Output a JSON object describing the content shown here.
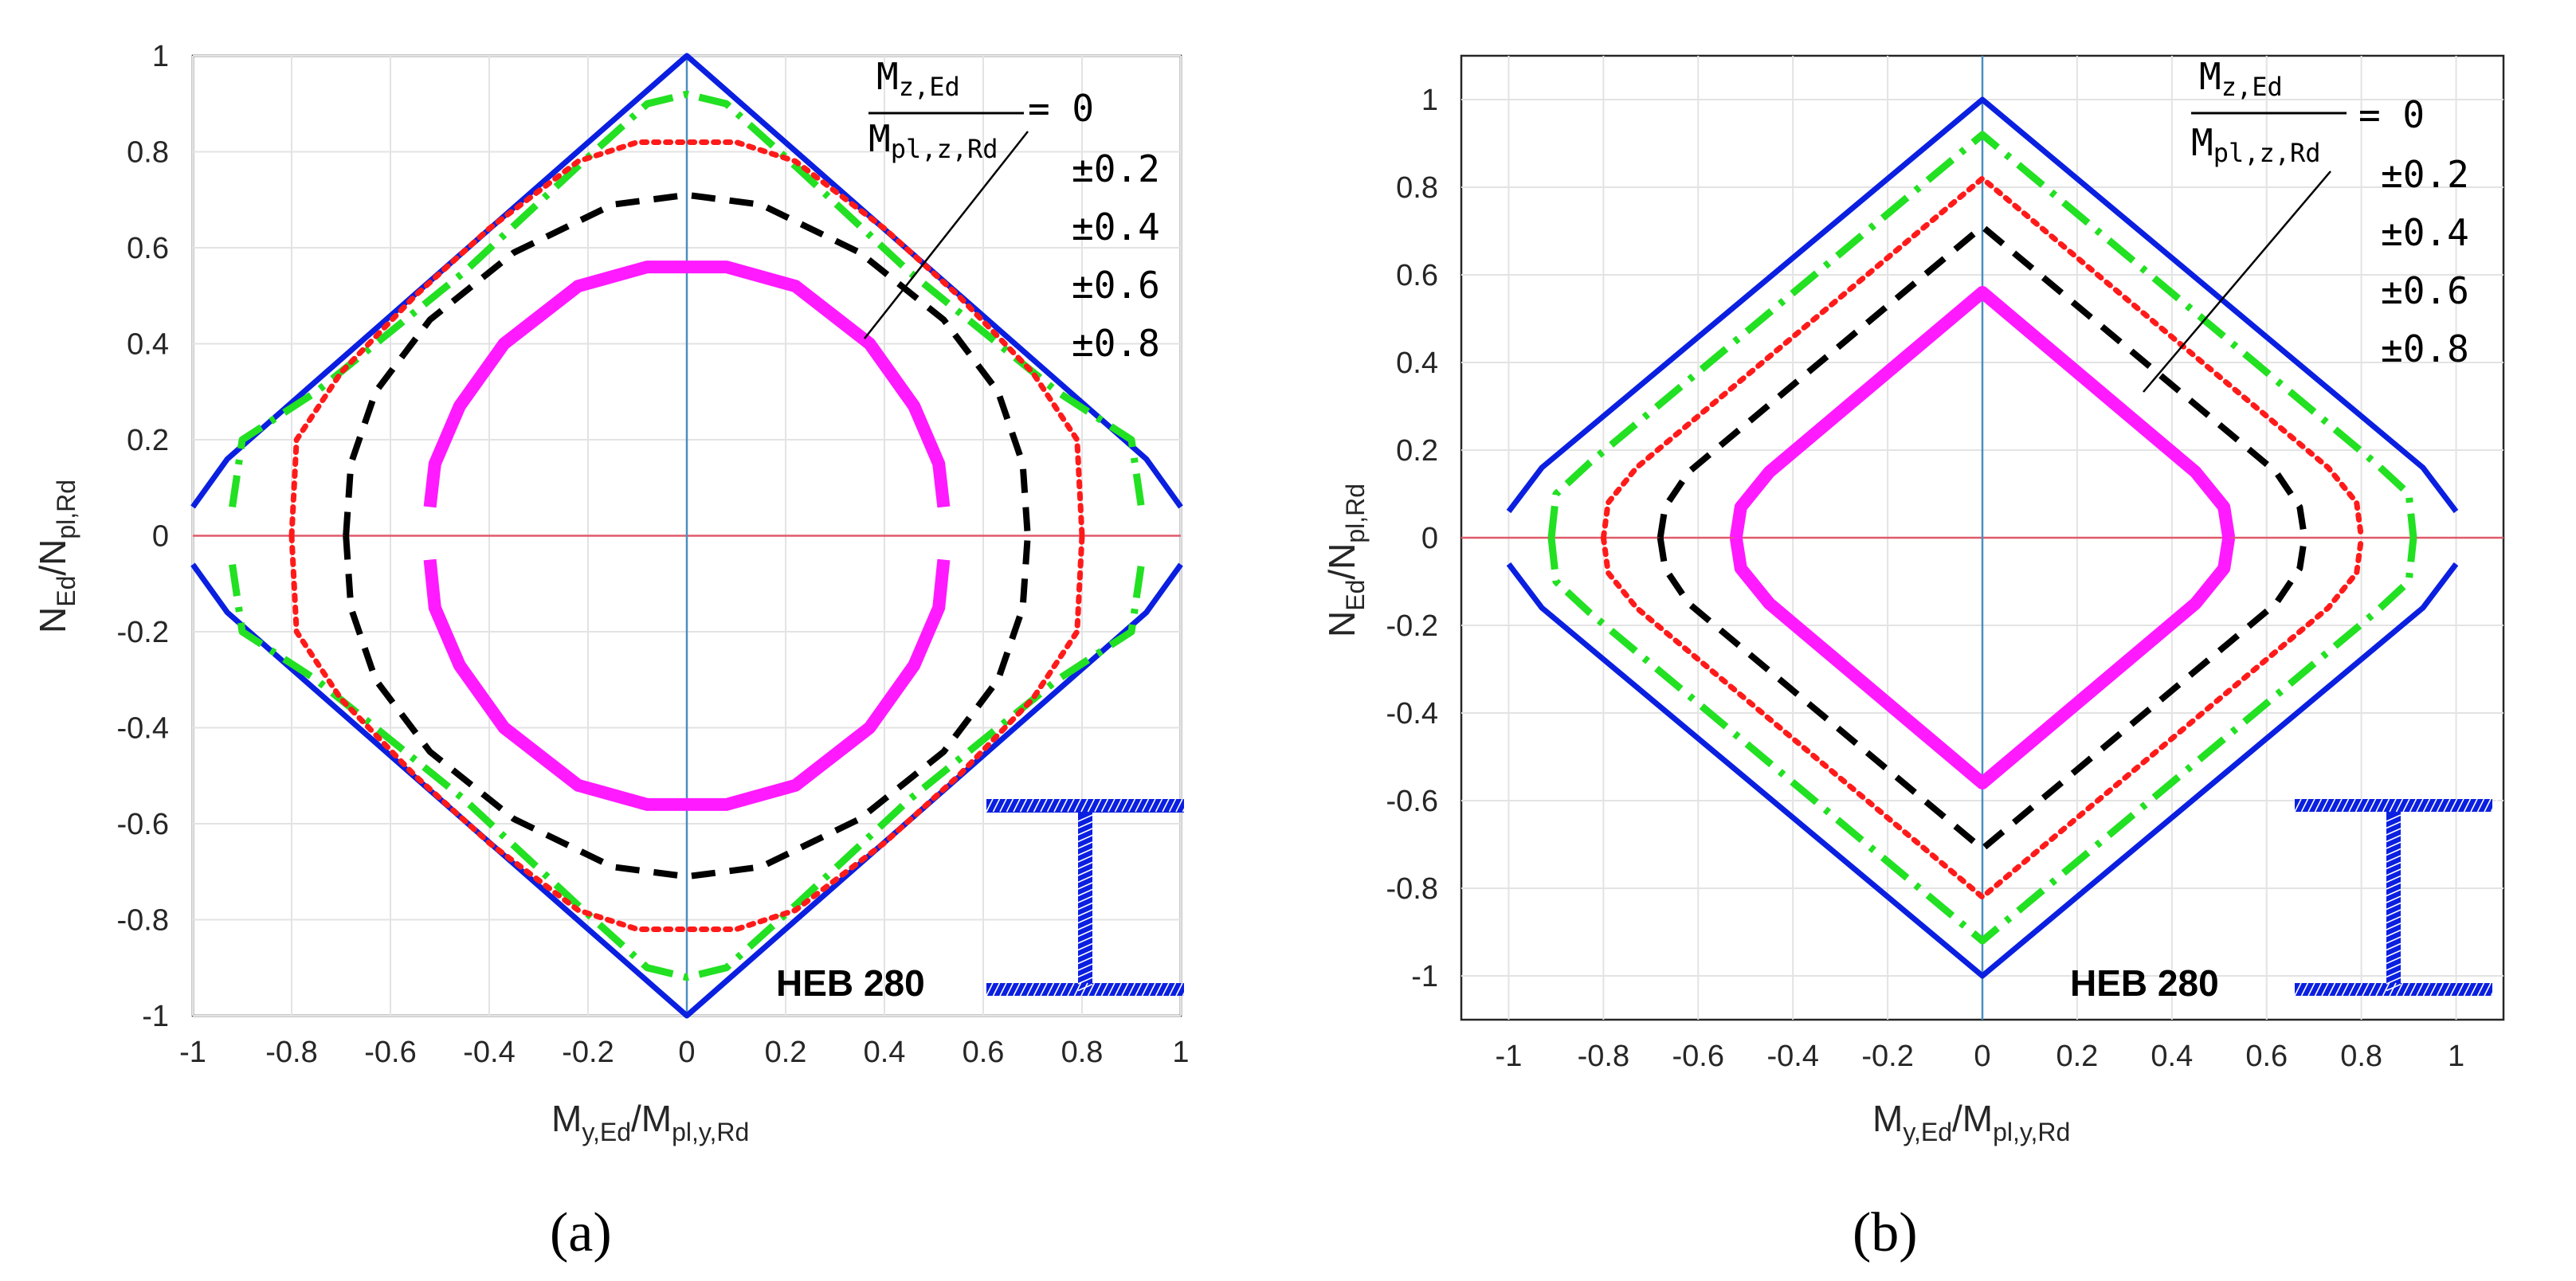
{
  "colors": {
    "blue": "#0a1fe0",
    "green": "#22e022",
    "red": "#ff1a1a",
    "black": "#000000",
    "magenta": "#ff1aff",
    "zero_line_horizontal": "#e05a6a",
    "zero_line_vertical": "#4a8fbf",
    "grid": "#e3e3e3"
  },
  "chart_data": [
    {
      "type": "line",
      "panel": "a",
      "caption": "(a)",
      "section_label": "HEB 280",
      "section_icon": "i-beam-icon",
      "xlabel_main": "M",
      "xlabel_sub": "y,Ed",
      "xlabel_slash": "/M",
      "xlabel_sub2": "pl,y,Rd",
      "ylabel_main": "N",
      "ylabel_sub": "Ed",
      "ylabel_slash": "/N",
      "ylabel_sub2": "pl,Rd",
      "xlim": [
        -1,
        1
      ],
      "ylim": [
        -1,
        1
      ],
      "xticks": [
        "-1",
        "-0.8",
        "-0.6",
        "-0.4",
        "-0.2",
        "0",
        "0.2",
        "0.4",
        "0.6",
        "0.8",
        "1"
      ],
      "yticks": [
        "1",
        "0.8",
        "0.6",
        "0.4",
        "0.2",
        "0",
        "-0.2",
        "-0.4",
        "-0.6",
        "-0.8",
        "-1"
      ],
      "grid": true,
      "legend": {
        "frac_num": "M",
        "frac_num_sub": "z,Ed",
        "frac_den": "M",
        "frac_den_sub": "pl,z,Rd",
        "first_value": "= 0",
        "values": [
          "±0.2",
          "±0.4",
          "±0.6",
          "±0.8"
        ]
      },
      "series": [
        {
          "name": "Mz=0",
          "style": "solid",
          "color": "blue",
          "upper": [
            [
              -1,
              0.06
            ],
            [
              -0.93,
              0.16
            ],
            [
              0,
              1
            ],
            [
              0.93,
              0.16
            ],
            [
              1,
              0.06
            ]
          ],
          "lower": [
            [
              -1,
              -0.06
            ],
            [
              -0.93,
              -0.16
            ],
            [
              0,
              -1
            ],
            [
              0.93,
              -0.16
            ],
            [
              1,
              -0.06
            ]
          ]
        },
        {
          "name": "±0.2",
          "style": "dashdot",
          "color": "green",
          "upper": [
            [
              -0.92,
              0.06
            ],
            [
              -0.9,
              0.2
            ],
            [
              -0.75,
              0.3
            ],
            [
              -0.45,
              0.55
            ],
            [
              -0.22,
              0.77
            ],
            [
              -0.08,
              0.9
            ],
            [
              0,
              0.92
            ],
            [
              0.08,
              0.9
            ],
            [
              0.22,
              0.77
            ],
            [
              0.45,
              0.55
            ],
            [
              0.75,
              0.3
            ],
            [
              0.9,
              0.2
            ],
            [
              0.92,
              0.06
            ]
          ],
          "lower": [
            [
              -0.92,
              -0.06
            ],
            [
              -0.9,
              -0.2
            ],
            [
              -0.75,
              -0.3
            ],
            [
              -0.45,
              -0.55
            ],
            [
              -0.22,
              -0.77
            ],
            [
              -0.08,
              -0.9
            ],
            [
              0,
              -0.92
            ],
            [
              0.08,
              -0.9
            ],
            [
              0.22,
              -0.77
            ],
            [
              0.45,
              -0.55
            ],
            [
              0.75,
              -0.3
            ],
            [
              0.9,
              -0.2
            ],
            [
              0.92,
              -0.06
            ]
          ]
        },
        {
          "name": "±0.4",
          "style": "dotted",
          "color": "red",
          "upper": [
            [
              -0.8,
              0.0
            ],
            [
              -0.79,
              0.2
            ],
            [
              -0.7,
              0.34
            ],
            [
              -0.55,
              0.5
            ],
            [
              -0.4,
              0.64
            ],
            [
              -0.22,
              0.78
            ],
            [
              -0.1,
              0.82
            ],
            [
              0,
              0.82
            ],
            [
              0.1,
              0.82
            ],
            [
              0.22,
              0.78
            ],
            [
              0.4,
              0.64
            ],
            [
              0.55,
              0.5
            ],
            [
              0.7,
              0.34
            ],
            [
              0.79,
              0.2
            ],
            [
              0.8,
              0.0
            ]
          ],
          "lower": [
            [
              -0.8,
              0.0
            ],
            [
              -0.79,
              -0.2
            ],
            [
              -0.7,
              -0.34
            ],
            [
              -0.55,
              -0.5
            ],
            [
              -0.4,
              -0.64
            ],
            [
              -0.22,
              -0.78
            ],
            [
              -0.1,
              -0.82
            ],
            [
              0,
              -0.82
            ],
            [
              0.1,
              -0.82
            ],
            [
              0.22,
              -0.78
            ],
            [
              0.4,
              -0.64
            ],
            [
              0.55,
              -0.5
            ],
            [
              0.7,
              -0.34
            ],
            [
              0.79,
              -0.2
            ],
            [
              0.8,
              0.0
            ]
          ]
        },
        {
          "name": "±0.6",
          "style": "dashed",
          "color": "black",
          "upper": [
            [
              -0.69,
              0.0
            ],
            [
              -0.68,
              0.15
            ],
            [
              -0.63,
              0.3
            ],
            [
              -0.52,
              0.45
            ],
            [
              -0.35,
              0.59
            ],
            [
              -0.15,
              0.69
            ],
            [
              0,
              0.71
            ],
            [
              0.15,
              0.69
            ],
            [
              0.35,
              0.59
            ],
            [
              0.52,
              0.45
            ],
            [
              0.63,
              0.3
            ],
            [
              0.68,
              0.15
            ],
            [
              0.69,
              0.0
            ]
          ],
          "lower": [
            [
              -0.69,
              0.0
            ],
            [
              -0.68,
              -0.15
            ],
            [
              -0.63,
              -0.3
            ],
            [
              -0.52,
              -0.45
            ],
            [
              -0.35,
              -0.59
            ],
            [
              -0.15,
              -0.69
            ],
            [
              0,
              -0.71
            ],
            [
              0.15,
              -0.69
            ],
            [
              0.35,
              -0.59
            ],
            [
              0.52,
              -0.45
            ],
            [
              0.63,
              -0.3
            ],
            [
              0.68,
              -0.15
            ],
            [
              0.69,
              0.0
            ]
          ]
        },
        {
          "name": "±0.8",
          "style": "thick",
          "color": "magenta",
          "upper": [
            [
              -0.52,
              0.06
            ],
            [
              -0.51,
              0.15
            ],
            [
              -0.46,
              0.27
            ],
            [
              -0.37,
              0.4
            ],
            [
              -0.22,
              0.52
            ],
            [
              -0.08,
              0.56
            ],
            [
              0,
              0.56
            ],
            [
              0.08,
              0.56
            ],
            [
              0.22,
              0.52
            ],
            [
              0.37,
              0.4
            ],
            [
              0.46,
              0.27
            ],
            [
              0.51,
              0.15
            ],
            [
              0.52,
              0.06
            ]
          ],
          "lower": [
            [
              -0.52,
              -0.05
            ],
            [
              -0.51,
              -0.15
            ],
            [
              -0.46,
              -0.27
            ],
            [
              -0.37,
              -0.4
            ],
            [
              -0.22,
              -0.52
            ],
            [
              -0.08,
              -0.56
            ],
            [
              0,
              -0.56
            ],
            [
              0.08,
              -0.56
            ],
            [
              0.22,
              -0.52
            ],
            [
              0.37,
              -0.4
            ],
            [
              0.46,
              -0.27
            ],
            [
              0.51,
              -0.15
            ],
            [
              0.52,
              -0.05
            ]
          ]
        }
      ]
    },
    {
      "type": "line",
      "panel": "b",
      "caption": "(b)",
      "section_label": "HEB 280",
      "section_icon": "i-beam-icon",
      "xlabel_main": "M",
      "xlabel_sub": "y,Ed",
      "xlabel_slash": "/M",
      "xlabel_sub2": "pl,y,Rd",
      "ylabel_main": "N",
      "ylabel_sub": "Ed",
      "ylabel_slash": "/N",
      "ylabel_sub2": "pl,Rd",
      "xlim": [
        -1.1,
        1.1
      ],
      "ylim": [
        -1.1,
        1.1
      ],
      "xticks": [
        "-1",
        "-0.8",
        "-0.6",
        "-0.4",
        "-0.2",
        "0",
        "0.2",
        "0.4",
        "0.6",
        "0.8",
        "1"
      ],
      "yticks": [
        "1",
        "0.8",
        "0.6",
        "0.4",
        "0.2",
        "0",
        "-0.2",
        "-0.4",
        "-0.6",
        "-0.8",
        "-1"
      ],
      "grid": true,
      "legend": {
        "frac_num": "M",
        "frac_num_sub": "z,Ed",
        "frac_den": "M",
        "frac_den_sub": "pl,z,Rd",
        "first_value": "= 0",
        "values": [
          "±0.2",
          "±0.4",
          "±0.6",
          "±0.8"
        ]
      },
      "series": [
        {
          "name": "Mz=0",
          "style": "solid",
          "color": "blue",
          "upper": [
            [
              -1,
              0.06
            ],
            [
              -0.93,
              0.16
            ],
            [
              0,
              1
            ],
            [
              0.93,
              0.16
            ],
            [
              1,
              0.06
            ]
          ],
          "lower": [
            [
              -1,
              -0.06
            ],
            [
              -0.93,
              -0.16
            ],
            [
              0,
              -1
            ],
            [
              0.93,
              -0.16
            ],
            [
              1,
              -0.06
            ]
          ]
        },
        {
          "name": "±0.2",
          "style": "dashdot",
          "color": "green",
          "upper": [
            [
              -0.91,
              0.0
            ],
            [
              -0.9,
              0.1
            ],
            [
              -0.83,
              0.17
            ],
            [
              0,
              0.92
            ],
            [
              0.83,
              0.17
            ],
            [
              0.9,
              0.1
            ],
            [
              0.91,
              0.0
            ]
          ],
          "lower": [
            [
              -0.91,
              0.0
            ],
            [
              -0.9,
              -0.1
            ],
            [
              -0.83,
              -0.17
            ],
            [
              0,
              -0.92
            ],
            [
              0.83,
              -0.17
            ],
            [
              0.9,
              -0.1
            ],
            [
              0.91,
              0.0
            ]
          ]
        },
        {
          "name": "±0.4",
          "style": "dotted",
          "color": "red",
          "upper": [
            [
              -0.8,
              0.0
            ],
            [
              -0.79,
              0.08
            ],
            [
              -0.73,
              0.16
            ],
            [
              0,
              0.82
            ],
            [
              0.73,
              0.16
            ],
            [
              0.79,
              0.08
            ],
            [
              0.8,
              0.0
            ]
          ],
          "lower": [
            [
              -0.8,
              0.0
            ],
            [
              -0.79,
              -0.08
            ],
            [
              -0.73,
              -0.16
            ],
            [
              0,
              -0.82
            ],
            [
              0.73,
              -0.16
            ],
            [
              0.79,
              -0.08
            ],
            [
              0.8,
              0.0
            ]
          ]
        },
        {
          "name": "±0.6",
          "style": "dashed",
          "color": "black",
          "upper": [
            [
              -0.68,
              0.0
            ],
            [
              -0.67,
              0.07
            ],
            [
              -0.62,
              0.15
            ],
            [
              0,
              0.71
            ],
            [
              0.62,
              0.15
            ],
            [
              0.67,
              0.07
            ],
            [
              0.68,
              0.0
            ]
          ],
          "lower": [
            [
              -0.68,
              0.0
            ],
            [
              -0.67,
              -0.07
            ],
            [
              -0.62,
              -0.15
            ],
            [
              0,
              -0.71
            ],
            [
              0.62,
              -0.15
            ],
            [
              0.67,
              -0.07
            ],
            [
              0.68,
              0.0
            ]
          ]
        },
        {
          "name": "±0.8",
          "style": "thick",
          "color": "magenta",
          "upper": [
            [
              -0.52,
              0.0
            ],
            [
              -0.51,
              0.07
            ],
            [
              -0.45,
              0.15
            ],
            [
              0,
              0.56
            ],
            [
              0.45,
              0.15
            ],
            [
              0.51,
              0.07
            ],
            [
              0.52,
              0.0
            ]
          ],
          "lower": [
            [
              -0.52,
              0.0
            ],
            [
              -0.51,
              -0.07
            ],
            [
              -0.45,
              -0.15
            ],
            [
              0,
              -0.56
            ],
            [
              0.45,
              -0.15
            ],
            [
              0.51,
              -0.07
            ],
            [
              0.52,
              0.0
            ]
          ]
        }
      ]
    }
  ]
}
